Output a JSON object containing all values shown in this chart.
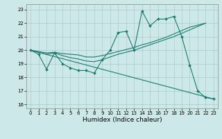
{
  "background_color": "#cce8e8",
  "grid_color": "#aacccc",
  "line_color": "#1a7a6e",
  "xlabel": "Humidex (Indice chaleur)",
  "xlim": [
    -0.5,
    23.5
  ],
  "ylim": [
    15.7,
    23.4
  ],
  "xticks": [
    0,
    1,
    2,
    3,
    4,
    5,
    6,
    7,
    8,
    9,
    10,
    11,
    12,
    13,
    14,
    15,
    16,
    17,
    18,
    19,
    20,
    21,
    22,
    23
  ],
  "yticks": [
    16,
    17,
    18,
    19,
    20,
    21,
    22,
    23
  ],
  "lines": [
    {
      "x": [
        0,
        1,
        2,
        3,
        4,
        5,
        6,
        7,
        8,
        9,
        10,
        11,
        12,
        13,
        14,
        15,
        16,
        17,
        18,
        19,
        20,
        21,
        22,
        23
      ],
      "y": [
        20.0,
        19.7,
        18.6,
        19.8,
        19.0,
        18.7,
        18.5,
        18.5,
        18.3,
        19.3,
        20.0,
        21.3,
        21.4,
        20.0,
        22.9,
        21.8,
        22.3,
        22.3,
        22.5,
        21.0,
        18.9,
        17.0,
        16.5,
        16.4
      ],
      "marker": true
    },
    {
      "x": [
        0,
        1,
        2,
        3,
        4,
        5,
        6,
        7,
        8,
        9,
        10,
        11,
        12,
        13,
        14,
        15,
        16,
        17,
        18,
        19,
        20,
        21,
        22
      ],
      "y": [
        20.0,
        19.9,
        19.8,
        19.85,
        19.75,
        19.7,
        19.65,
        19.5,
        19.5,
        19.6,
        19.75,
        19.9,
        20.05,
        20.2,
        20.4,
        20.55,
        20.75,
        20.95,
        21.2,
        21.45,
        21.7,
        21.85,
        22.0
      ],
      "marker": false
    },
    {
      "x": [
        0,
        1,
        2,
        3,
        4,
        5,
        6,
        7,
        8,
        9,
        10,
        11,
        12,
        13,
        14,
        15,
        16,
        17,
        18,
        19,
        20,
        21,
        22
      ],
      "y": [
        20.0,
        19.85,
        19.7,
        19.8,
        19.6,
        19.45,
        19.35,
        19.2,
        19.15,
        19.3,
        19.5,
        19.7,
        19.85,
        20.0,
        20.2,
        20.4,
        20.6,
        20.8,
        21.0,
        21.25,
        21.5,
        21.75,
        22.0
      ],
      "marker": false
    },
    {
      "x": [
        0,
        23
      ],
      "y": [
        20.0,
        16.4
      ],
      "marker": false
    }
  ]
}
